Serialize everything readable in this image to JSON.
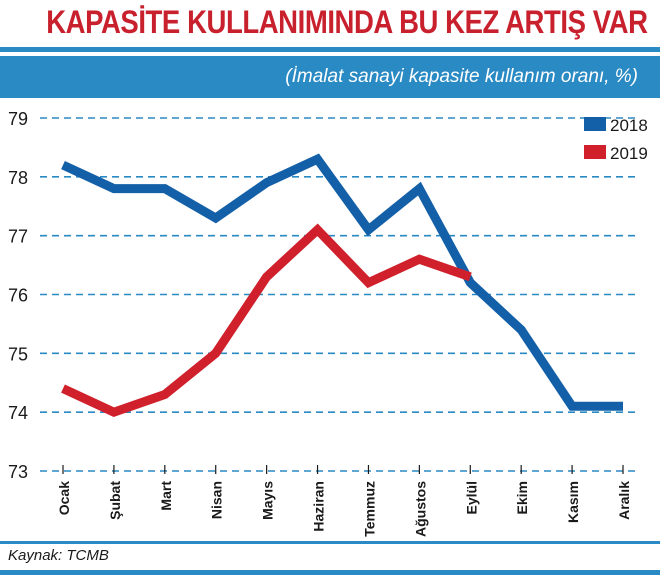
{
  "header": {
    "title": "KAPASİTE KULLANIMINDA BU KEZ ARTIŞ VAR",
    "subtitle": "(İmalat sanayi kapasite kullanım oranı, %)"
  },
  "footer": {
    "source": "Kaynak: TCMB"
  },
  "colors": {
    "title": "#c8202d",
    "band": "#2a8ac4",
    "grid": "#2a8ac4",
    "series_2018": "#1460a8",
    "series_2019": "#d0202c"
  },
  "chart_data": {
    "type": "line",
    "categories": [
      "Ocak",
      "Şubat",
      "Mart",
      "Nisan",
      "Mayıs",
      "Haziran",
      "Temmuz",
      "Ağustos",
      "Eylül",
      "Ekim",
      "Kasım",
      "Aralık"
    ],
    "series": [
      {
        "name": "2018",
        "color": "#1460a8",
        "values": [
          78.2,
          77.8,
          77.8,
          77.3,
          77.9,
          78.3,
          77.1,
          77.8,
          76.2,
          75.4,
          74.1,
          74.1
        ]
      },
      {
        "name": "2019",
        "color": "#d0202c",
        "values": [
          74.4,
          74.0,
          74.3,
          75.0,
          76.3,
          77.1,
          76.2,
          76.6,
          76.3,
          null,
          null,
          null
        ]
      }
    ],
    "yticks": [
      73,
      74,
      75,
      76,
      77,
      78,
      79
    ],
    "ylim": [
      73,
      79
    ],
    "grid": true,
    "legend_position": "top-right"
  }
}
